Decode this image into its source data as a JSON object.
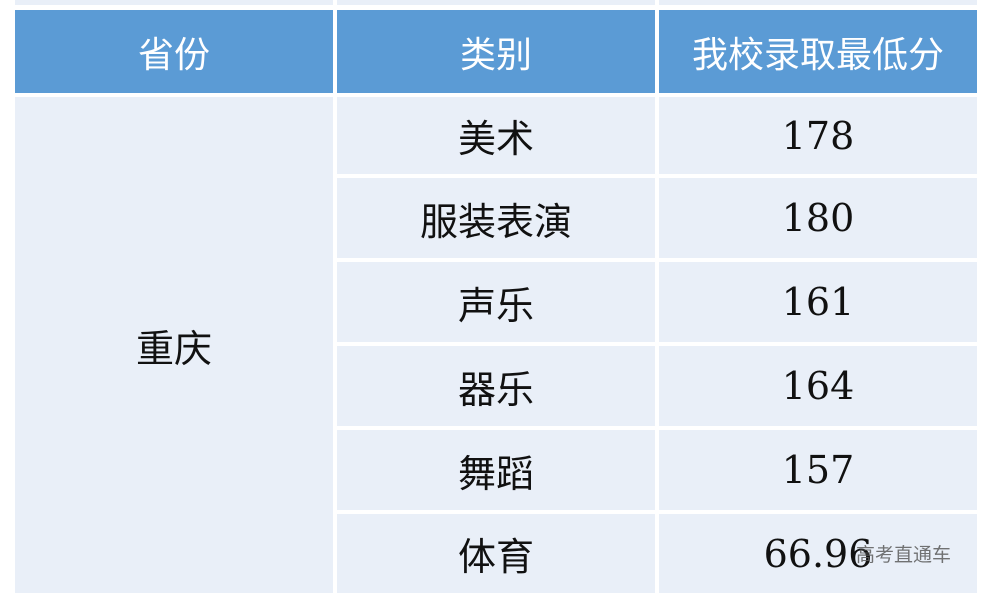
{
  "table": {
    "headers": [
      "省份",
      "类别",
      "我校录取最低分"
    ],
    "province": "重庆",
    "rows": [
      {
        "category": "美术",
        "score": "178"
      },
      {
        "category": "服装表演",
        "score": "180"
      },
      {
        "category": "声乐",
        "score": "161"
      },
      {
        "category": "器乐",
        "score": "164"
      },
      {
        "category": "舞蹈",
        "score": "157"
      },
      {
        "category": "体育",
        "score": "66.96"
      }
    ]
  },
  "watermark": "高考直通车",
  "colors": {
    "header_bg": "#5b9bd5",
    "body_bg": "#e9eff8",
    "header_text": "#ffffff"
  }
}
